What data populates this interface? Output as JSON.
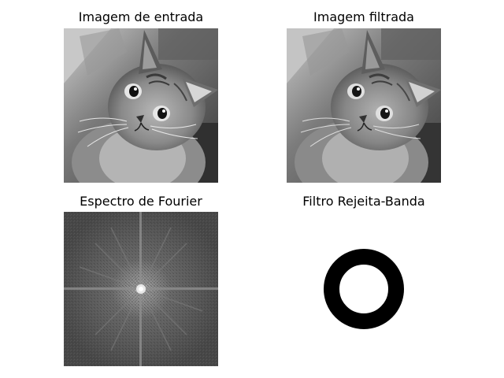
{
  "figure": {
    "background": "#ffffff",
    "panels": [
      {
        "title": "Imagem de entrada",
        "content": "grayscale photo of a tabby cat looking up"
      },
      {
        "title": "Imagem filtrada",
        "content": "grayscale photo of a tabby cat looking up (filtered)"
      },
      {
        "title": "Espectro de Fourier",
        "content": "log-magnitude Fourier spectrum, bright center with cross streaks"
      },
      {
        "title": "Filtro Rejeita-Banda",
        "content": "black annulus on white background"
      }
    ]
  },
  "colors": {
    "title_text": "#000000",
    "spectrum_bg": "#4a4a4a",
    "filter_ring": "#000000",
    "filter_bg": "#ffffff"
  }
}
